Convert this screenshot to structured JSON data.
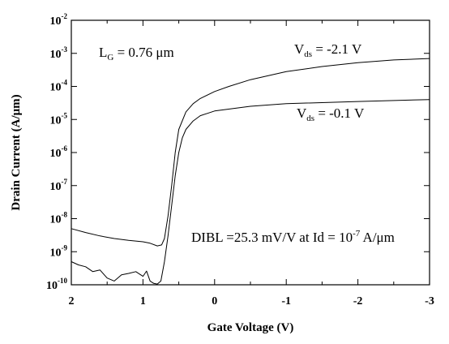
{
  "chart_data": {
    "type": "line",
    "xlabel": "Gate Voltage (V)",
    "ylabel": "Drain Current (A/μm)",
    "xlim": [
      2,
      -3
    ],
    "x_reversed": true,
    "ylim": [
      1e-10,
      0.01
    ],
    "y_scale": "log",
    "x_ticks": [
      2,
      1,
      0,
      -1,
      -2,
      -3
    ],
    "x_tick_labels": [
      "2",
      "1",
      "0",
      "-1",
      "-2",
      "-3"
    ],
    "y_ticks": [
      {
        "base": "10",
        "exp": "-10",
        "value": 1e-10
      },
      {
        "base": "10",
        "exp": "-9",
        "value": 1e-09
      },
      {
        "base": "10",
        "exp": "-8",
        "value": 1e-08
      },
      {
        "base": "10",
        "exp": "-7",
        "value": 1e-07
      },
      {
        "base": "10",
        "exp": "-6",
        "value": 1e-06
      },
      {
        "base": "10",
        "exp": "-5",
        "value": 1e-05
      },
      {
        "base": "10",
        "exp": "-4",
        "value": 0.0001
      },
      {
        "base": "10",
        "exp": "-3",
        "value": 0.001
      },
      {
        "base": "10",
        "exp": "-2",
        "value": 0.01
      }
    ],
    "grid": false,
    "annotations": {
      "lg": {
        "pre": "L",
        "sub": "G",
        "post": " = 0.76 μm"
      },
      "vds1": {
        "pre": "V",
        "sub": "ds",
        "post": " = -2.1 V"
      },
      "vds2": {
        "pre": "V",
        "sub": "ds",
        "post": " = -0.1 V"
      },
      "dibl": {
        "pre": "DIBL =25.3 mV/V at Id = 10",
        "sup": "-7",
        "post": " A/μm"
      }
    },
    "series": [
      {
        "label_ref": "vds1",
        "points": [
          [
            2.0,
            5e-09
          ],
          [
            1.8,
            3.8e-09
          ],
          [
            1.6,
            3e-09
          ],
          [
            1.4,
            2.5e-09
          ],
          [
            1.2,
            2.2e-09
          ],
          [
            1.0,
            2e-09
          ],
          [
            0.9,
            1.8e-09
          ],
          [
            0.8,
            1.5e-09
          ],
          [
            0.74,
            1.6e-09
          ],
          [
            0.7,
            2.5e-09
          ],
          [
            0.65,
            1.2e-08
          ],
          [
            0.6,
            1e-07
          ],
          [
            0.55,
            1e-06
          ],
          [
            0.5,
            5e-06
          ],
          [
            0.4,
            1.7e-05
          ],
          [
            0.3,
            3e-05
          ],
          [
            0.2,
            4.3e-05
          ],
          [
            0.0,
            7e-05
          ],
          [
            -0.2,
            0.0001
          ],
          [
            -0.5,
            0.00016
          ],
          [
            -1.0,
            0.00028
          ],
          [
            -1.5,
            0.0004
          ],
          [
            -2.0,
            0.00052
          ],
          [
            -2.5,
            0.00063
          ],
          [
            -3.0,
            0.0007
          ]
        ]
      },
      {
        "label_ref": "vds2",
        "points": [
          [
            2.0,
            5e-10
          ],
          [
            1.9,
            4e-10
          ],
          [
            1.8,
            3.5e-10
          ],
          [
            1.7,
            2.5e-10
          ],
          [
            1.6,
            2.8e-10
          ],
          [
            1.5,
            1.6e-10
          ],
          [
            1.4,
            1.3e-10
          ],
          [
            1.3,
            2e-10
          ],
          [
            1.2,
            2.2e-10
          ],
          [
            1.1,
            2.5e-10
          ],
          [
            1.0,
            1.8e-10
          ],
          [
            0.95,
            2.6e-10
          ],
          [
            0.9,
            1.3e-10
          ],
          [
            0.85,
            1.1e-10
          ],
          [
            0.8,
            1.05e-10
          ],
          [
            0.75,
            1.3e-10
          ],
          [
            0.7,
            5e-10
          ],
          [
            0.65,
            3e-09
          ],
          [
            0.6,
            2.5e-08
          ],
          [
            0.55,
            2e-07
          ],
          [
            0.5,
            1e-06
          ],
          [
            0.45,
            2.8e-06
          ],
          [
            0.4,
            5e-06
          ],
          [
            0.3,
            9e-06
          ],
          [
            0.2,
            1.3e-05
          ],
          [
            0.0,
            1.8e-05
          ],
          [
            -0.5,
            2.5e-05
          ],
          [
            -1.0,
            3e-05
          ],
          [
            -2.0,
            3.5e-05
          ],
          [
            -3.0,
            4e-05
          ]
        ]
      }
    ]
  }
}
